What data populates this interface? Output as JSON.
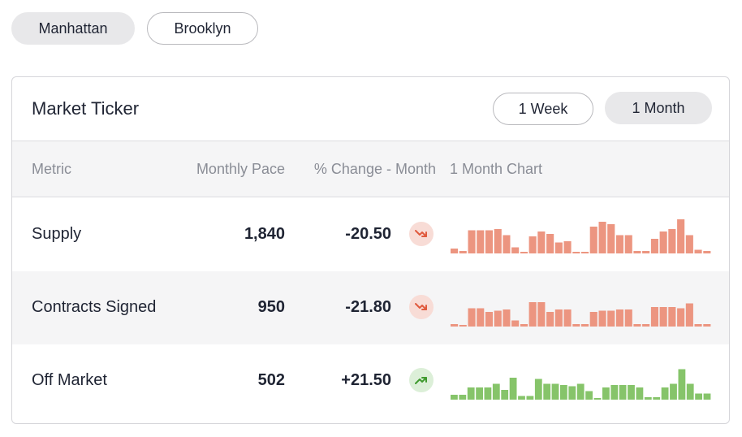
{
  "location_tabs": [
    {
      "label": "Manhattan",
      "active": true
    },
    {
      "label": "Brooklyn",
      "active": false
    }
  ],
  "card": {
    "title": "Market Ticker",
    "ranges": [
      {
        "label": "1 Week",
        "active": false
      },
      {
        "label": "1 Month",
        "active": true
      }
    ]
  },
  "table": {
    "headers": {
      "metric": "Metric",
      "pace": "Monthly Pace",
      "change": "% Change - Month",
      "chart": "1 Month Chart"
    },
    "rows": [
      {
        "metric": "Supply",
        "pace": "1,840",
        "change": "-20.50",
        "trend": "down",
        "icon": "trend-down-icon",
        "color": "#ec9580",
        "chart_values": [
          4,
          2,
          19,
          19,
          19,
          20,
          15,
          5,
          0,
          14,
          18,
          16,
          9,
          10,
          1,
          0,
          22,
          26,
          24,
          15,
          15,
          2,
          2,
          12,
          18,
          20,
          28,
          15,
          3,
          2
        ]
      },
      {
        "metric": "Contracts Signed",
        "pace": "950",
        "change": "-21.80",
        "trend": "down",
        "icon": "trend-down-icon",
        "color": "#ec9580",
        "chart_values": [
          2,
          0,
          15,
          15,
          12,
          13,
          14,
          5,
          2,
          20,
          20,
          12,
          14,
          14,
          2,
          2,
          12,
          13,
          13,
          14,
          14,
          2,
          2,
          16,
          16,
          16,
          15,
          19,
          2,
          2
        ]
      },
      {
        "metric": "Off Market",
        "pace": "502",
        "change": "+21.50",
        "trend": "up",
        "icon": "trend-up-icon",
        "color": "#86c46a",
        "chart_values": [
          4,
          4,
          10,
          10,
          10,
          13,
          8,
          18,
          3,
          3,
          17,
          13,
          13,
          12,
          11,
          13,
          7,
          1,
          10,
          12,
          12,
          12,
          10,
          2,
          2,
          10,
          13,
          25,
          13,
          5,
          5
        ]
      }
    ]
  },
  "colors": {
    "down_accent": "#ec9580",
    "up_accent": "#86c46a",
    "down_arrow": "#e05a3e",
    "up_arrow": "#3f9a2e"
  }
}
